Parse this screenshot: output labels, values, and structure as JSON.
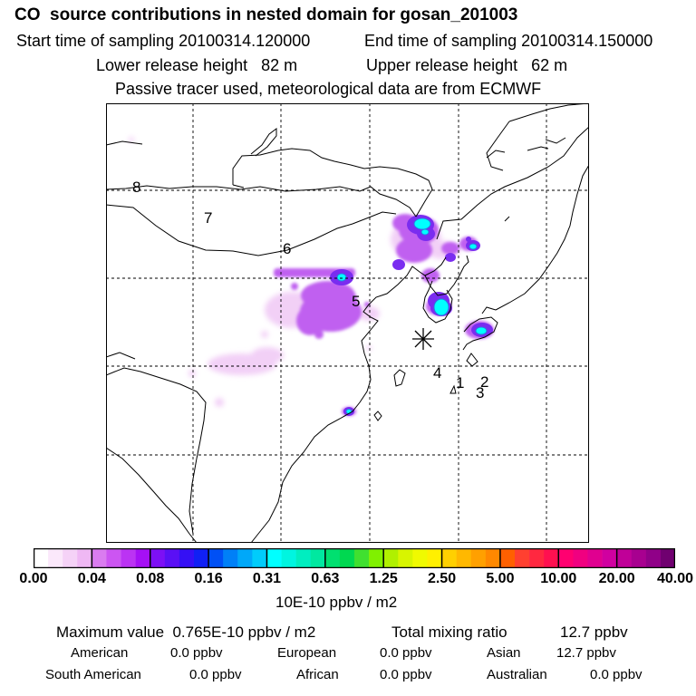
{
  "header": {
    "title": "CO  source contributions in nested domain for gosan_201003",
    "start_time": "Start time of sampling 20100314.120000",
    "end_time": "End time of sampling 20100314.150000",
    "lower_height": "Lower release height   82 m",
    "upper_height": "Upper release height   62 m",
    "tracer_note": "Passive tracer used, meteorological data are from ECMWF"
  },
  "map": {
    "trajectory_labels": [
      "8",
      "7",
      "6",
      "5",
      "4",
      "1",
      "2",
      "3"
    ],
    "receptor_marker": "asterisk",
    "colors": {
      "coast": "#000000",
      "grid": "#000000",
      "plume_low": "#f0c8f5",
      "plume_mid": "#c060f0",
      "plume_high": "#7a2cf0",
      "plume_hot": "#00ffff"
    }
  },
  "colorbar": {
    "ticks": [
      "0.00",
      "0.04",
      "0.08",
      "0.16",
      "0.31",
      "0.63",
      "1.25",
      "2.50",
      "5.00",
      "10.00",
      "20.00",
      "40.00"
    ],
    "unit": "10E-10 ppbv / m2",
    "segments": [
      [
        "#ffffff",
        "#fbe8fb",
        "#f5d2f7",
        "#efb8f4"
      ],
      [
        "#da7cf0",
        "#cc55f2",
        "#bb33f3",
        "#a510f5"
      ],
      [
        "#7d10f5",
        "#5a10f5",
        "#3510f5",
        "#1020f5"
      ],
      [
        "#0050f5",
        "#0080f7",
        "#00a8f9",
        "#00ccfb"
      ],
      [
        "#00ffff",
        "#00f5e0",
        "#00eec0",
        "#00e8a0"
      ],
      [
        "#00e070",
        "#00d850",
        "#40e030",
        "#80f000"
      ],
      [
        "#b0f000",
        "#d8f500",
        "#f0fa00",
        "#fff000"
      ],
      [
        "#ffd000",
        "#ffb800",
        "#ffa000",
        "#ff8800"
      ],
      [
        "#ff6000",
        "#ff4030",
        "#ff2840",
        "#ff1050"
      ],
      [
        "#ff0070",
        "#f00080",
        "#e00090",
        "#d000a0"
      ],
      [
        "#c00098",
        "#a80090",
        "#900088",
        "#700070"
      ]
    ]
  },
  "summary": {
    "max_label": "Maximum value  0.765E-10 ppbv / m2",
    "total_label": "Total mixing ratio",
    "total_value": "12.7 ppbv",
    "american_label": "American",
    "american_value": "0.0 ppbv",
    "european_label": "European",
    "european_value": "0.0 ppbv",
    "asian_label": "Asian",
    "asian_value": "12.7 ppbv",
    "south_american_label": "South American",
    "south_american_value": "0.0 ppbv",
    "african_label": "African",
    "african_value": "0.0 ppbv",
    "australian_label": "Australian",
    "australian_value": "0.0 ppbv"
  }
}
